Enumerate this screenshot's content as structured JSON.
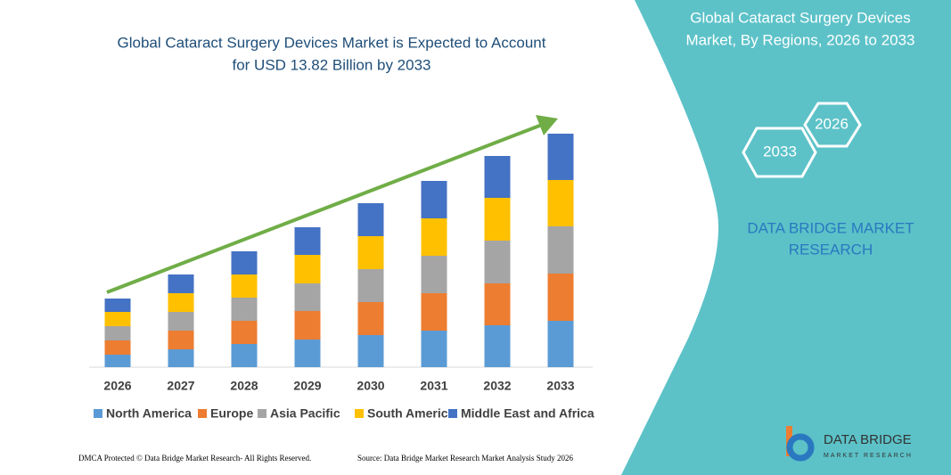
{
  "chart_data": {
    "type": "bar",
    "stacked": true,
    "title": [
      "Global Cataract Surgery Devices Market is Expected to Account",
      "for USD 13.82 Billion by 2033"
    ],
    "categories": [
      "2026",
      "2027",
      "2028",
      "2029",
      "2030",
      "2031",
      "2032",
      "2033"
    ],
    "series": [
      {
        "name": "North America",
        "color": "#5b9bd5",
        "values": [
          14,
          20,
          26,
          31,
          36,
          41,
          47,
          52
        ]
      },
      {
        "name": "Europe",
        "color": "#ed7d31",
        "values": [
          16,
          21,
          26,
          32,
          37,
          42,
          47,
          53
        ]
      },
      {
        "name": "Asia Pacific",
        "color": "#a5a5a5",
        "values": [
          16,
          21,
          26,
          31,
          37,
          42,
          48,
          53
        ]
      },
      {
        "name": "South America",
        "color": "#ffc000",
        "values": [
          16,
          21,
          26,
          32,
          37,
          42,
          48,
          52
        ]
      },
      {
        "name": "Middle East and Africa",
        "color": "#4472c4",
        "values": [
          15,
          21,
          26,
          31,
          37,
          42,
          47,
          52
        ]
      }
    ]
  },
  "panel": {
    "title": [
      "Global Cataract Surgery Devices",
      "Market, By Regions, 2026 to 2033"
    ],
    "start_year": "2026",
    "end_year": "2033",
    "brand": [
      "DATA BRIDGE MARKET",
      "RESEARCH"
    ]
  },
  "logo": {
    "name": "DATA BRIDGE",
    "tagline": "MARKET RESEARCH"
  },
  "footer": {
    "left": "DMCA Protected © Data Bridge Market Research- All Rights Reserved.",
    "right": "Source: Data Bridge Market Research Market Analysis Study 2026"
  }
}
